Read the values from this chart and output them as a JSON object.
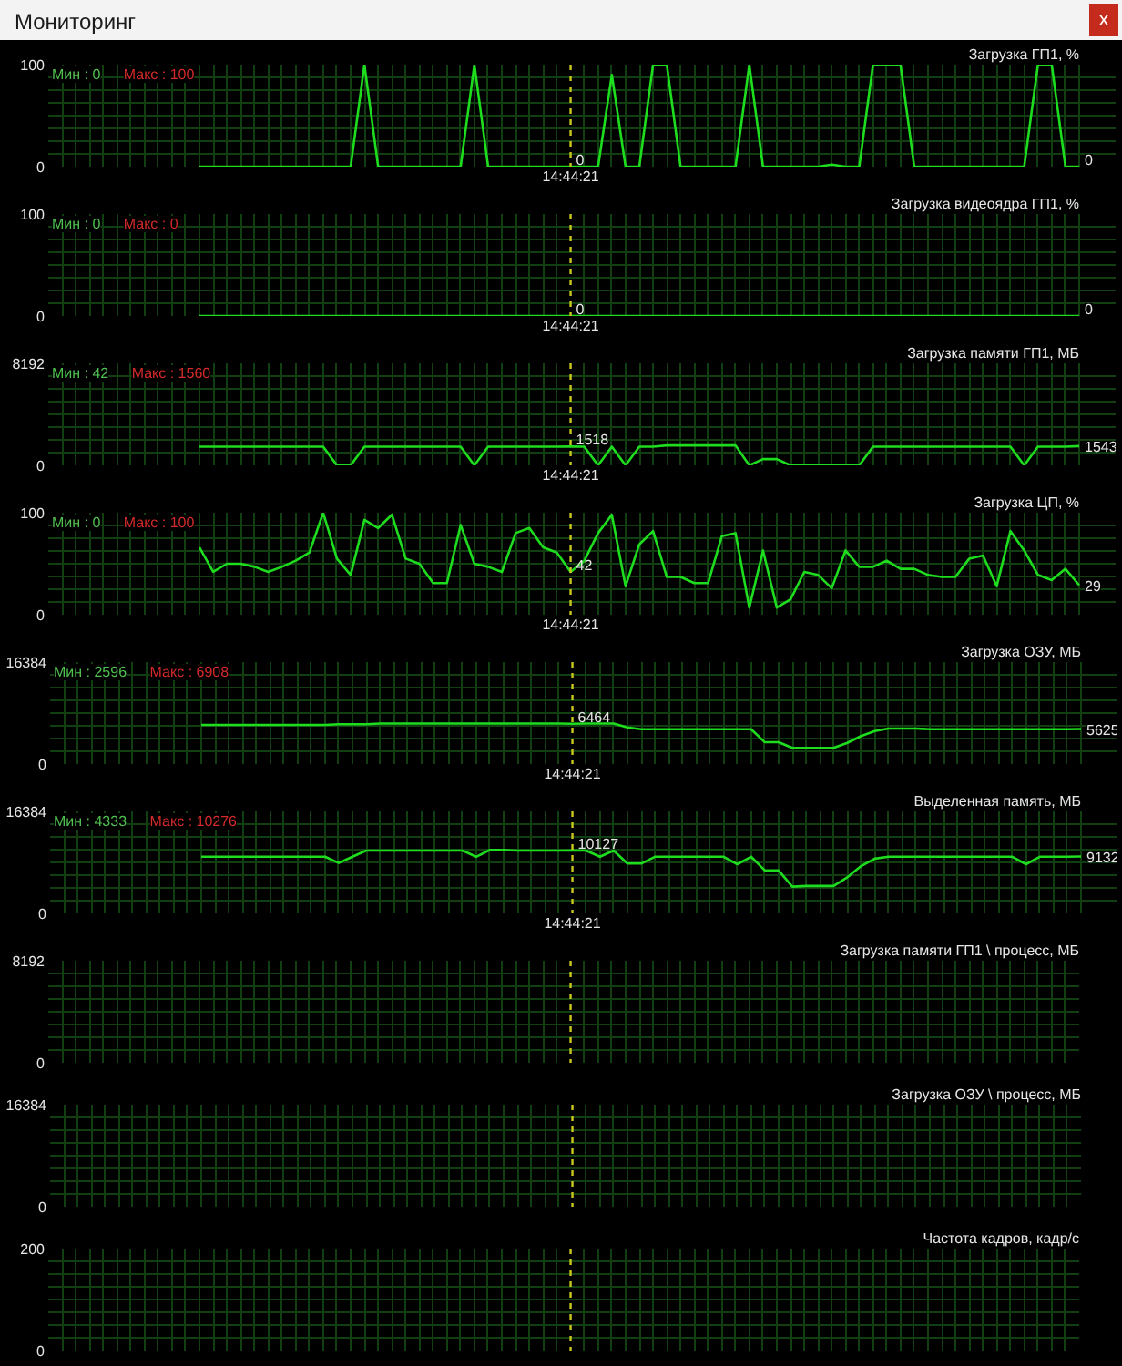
{
  "chart_data": [
    {
      "type": "line",
      "title": "Загрузка ГП1, %",
      "annotations": [
        "Мин : 0",
        "Макс : 100",
        "Мониторинг",
        "x"
      ],
      "categories": [
        null,
        null,
        null,
        null,
        null,
        null,
        null,
        null,
        null,
        null,
        null,
        null,
        null,
        null,
        null,
        null,
        null,
        null,
        null,
        null,
        null,
        null,
        null,
        null,
        null,
        null,
        null,
        null,
        null,
        null,
        null,
        null,
        null,
        null,
        null,
        null,
        null,
        null,
        "14:44:21",
        null,
        null,
        null,
        null,
        null,
        null,
        null,
        null,
        null,
        null,
        null,
        null,
        null,
        null,
        null,
        null,
        null,
        null,
        null,
        null,
        null,
        null,
        null,
        null,
        null,
        null,
        null,
        null,
        null,
        null,
        null,
        null,
        null,
        null,
        null,
        null,
        null
      ],
      "values": [
        null,
        null,
        null,
        null,
        null,
        null,
        null,
        null,
        null,
        null,
        null,
        0,
        0,
        0,
        0,
        0,
        0,
        0,
        0,
        0,
        0,
        0,
        0,
        100,
        0,
        0,
        0,
        0,
        0,
        0,
        0,
        100,
        0,
        0,
        0,
        0,
        0,
        0,
        0,
        0,
        0,
        90,
        0,
        0,
        100,
        100,
        0,
        0,
        0,
        0,
        0,
        100,
        0,
        0,
        0,
        0,
        0,
        2,
        0,
        0,
        100,
        100,
        100,
        0,
        0,
        0,
        0,
        0,
        0,
        0,
        0,
        0,
        100,
        100,
        0,
        0
      ],
      "color": "#1edc1e",
      "value_labels": [
        null,
        null,
        null,
        null,
        null,
        null,
        null,
        null,
        null,
        null,
        null,
        null,
        null,
        null,
        null,
        null,
        null,
        null,
        null,
        null,
        null,
        null,
        null,
        null,
        null,
        null,
        null,
        null,
        null,
        null,
        null,
        null,
        null,
        null,
        null,
        null,
        null,
        null,
        "0",
        null,
        null,
        null,
        null,
        null,
        null,
        null,
        null,
        null,
        null,
        null,
        null,
        null,
        null,
        null,
        null,
        null,
        null,
        null,
        null,
        null,
        null,
        null,
        null,
        null,
        null,
        null,
        null,
        null,
        null,
        null,
        null,
        null,
        null,
        null,
        null,
        "0"
      ],
      "ylim": [
        0,
        100
      ],
      "yticks": [
        0,
        {
          "value": 12.5,
          "label": null
        },
        {
          "value": 25,
          "label": null
        },
        {
          "value": 37.5,
          "label": null
        },
        {
          "value": 50,
          "label": null
        },
        {
          "value": 62.5,
          "label": null
        },
        {
          "value": 75,
          "label": null
        },
        {
          "value": 87.5,
          "label": null
        },
        100
      ],
      "grid": true,
      "ref_lines": [
        {
          "axis": "x",
          "value": "14:44:21",
          "color": "#c8c81e",
          "line_style": "dashed"
        }
      ]
    },
    {
      "type": "line",
      "title": "Загрузка видеоядра ГП1, %",
      "annotations": [
        "Мин : 0",
        "Макс : 0"
      ],
      "categories": [
        null,
        null,
        null,
        null,
        null,
        null,
        null,
        null,
        null,
        null,
        null,
        null,
        null,
        null,
        null,
        null,
        null,
        null,
        null,
        null,
        null,
        null,
        null,
        null,
        null,
        null,
        null,
        null,
        null,
        null,
        null,
        null,
        null,
        null,
        null,
        null,
        null,
        null,
        "14:44:21",
        null,
        null,
        null,
        null,
        null,
        null,
        null,
        null,
        null,
        null,
        null,
        null,
        null,
        null,
        null,
        null,
        null,
        null,
        null,
        null,
        null,
        null,
        null,
        null,
        null,
        null,
        null,
        null,
        null,
        null,
        null,
        null,
        null,
        null,
        null,
        null,
        null
      ],
      "values": [
        null,
        null,
        null,
        null,
        null,
        null,
        null,
        null,
        null,
        null,
        null,
        0,
        0,
        0,
        0,
        0,
        0,
        0,
        0,
        0,
        0,
        0,
        0,
        0,
        0,
        0,
        0,
        0,
        0,
        0,
        0,
        0,
        0,
        0,
        0,
        0,
        0,
        0,
        0,
        0,
        0,
        0,
        0,
        0,
        0,
        0,
        0,
        0,
        0,
        0,
        0,
        0,
        0,
        0,
        0,
        0,
        0,
        0,
        0,
        0,
        0,
        0,
        0,
        0,
        0,
        0,
        0,
        0,
        0,
        0,
        0,
        0,
        0,
        0,
        0,
        0
      ],
      "color": "#1edc1e",
      "value_labels": [
        null,
        null,
        null,
        null,
        null,
        null,
        null,
        null,
        null,
        null,
        null,
        null,
        null,
        null,
        null,
        null,
        null,
        null,
        null,
        null,
        null,
        null,
        null,
        null,
        null,
        null,
        null,
        null,
        null,
        null,
        null,
        null,
        null,
        null,
        null,
        null,
        null,
        null,
        "0",
        null,
        null,
        null,
        null,
        null,
        null,
        null,
        null,
        null,
        null,
        null,
        null,
        null,
        null,
        null,
        null,
        null,
        null,
        null,
        null,
        null,
        null,
        null,
        null,
        null,
        null,
        null,
        null,
        null,
        null,
        null,
        null,
        null,
        null,
        null,
        null,
        "0"
      ],
      "ylim": [
        0,
        100
      ],
      "yticks": [
        0,
        {
          "value": 12.5,
          "label": null
        },
        {
          "value": 25,
          "label": null
        },
        {
          "value": 37.5,
          "label": null
        },
        {
          "value": 50,
          "label": null
        },
        {
          "value": 62.5,
          "label": null
        },
        {
          "value": 75,
          "label": null
        },
        {
          "value": 87.5,
          "label": null
        },
        100
      ],
      "grid": true,
      "ref_lines": [
        {
          "axis": "x",
          "value": "14:44:21",
          "color": "#c8c81e",
          "line_style": "dashed"
        }
      ]
    },
    {
      "type": "line",
      "title": "Загрузка памяти ГП1, МБ",
      "annotations": [
        "Мин : 42",
        "Макс : 1560"
      ],
      "categories": [
        null,
        null,
        null,
        null,
        null,
        null,
        null,
        null,
        null,
        null,
        null,
        null,
        null,
        null,
        null,
        null,
        null,
        null,
        null,
        null,
        null,
        null,
        null,
        null,
        null,
        null,
        null,
        null,
        null,
        null,
        null,
        null,
        null,
        null,
        null,
        null,
        null,
        null,
        "14:44:21",
        null,
        null,
        null,
        null,
        null,
        null,
        null,
        null,
        null,
        null,
        null,
        null,
        null,
        null,
        null,
        null,
        null,
        null,
        null,
        null,
        null,
        null,
        null,
        null,
        null,
        null,
        null,
        null,
        null,
        null,
        null,
        null,
        null,
        null,
        null,
        null,
        null
      ],
      "values": [
        null,
        null,
        null,
        null,
        null,
        null,
        null,
        null,
        null,
        null,
        null,
        1500,
        1500,
        1500,
        1500,
        1500,
        1500,
        1500,
        1500,
        1500,
        1500,
        0,
        0,
        1500,
        1500,
        1500,
        1500,
        1500,
        1500,
        1500,
        1500,
        0,
        1500,
        1500,
        1500,
        1500,
        1500,
        1500,
        1518,
        1500,
        0,
        1500,
        0,
        1500,
        1500,
        1600,
        1600,
        1600,
        1600,
        1600,
        1600,
        0,
        500,
        500,
        0,
        0,
        0,
        0,
        0,
        0,
        1500,
        1500,
        1500,
        1500,
        1500,
        1500,
        1500,
        1500,
        1500,
        1500,
        1500,
        0,
        1500,
        1500,
        1500,
        1543
      ],
      "color": "#1edc1e",
      "value_labels": [
        null,
        null,
        null,
        null,
        null,
        null,
        null,
        null,
        null,
        null,
        null,
        null,
        null,
        null,
        null,
        null,
        null,
        null,
        null,
        null,
        null,
        null,
        null,
        null,
        null,
        null,
        null,
        null,
        null,
        null,
        null,
        null,
        null,
        null,
        null,
        null,
        null,
        null,
        "1518",
        null,
        null,
        null,
        null,
        null,
        null,
        null,
        null,
        null,
        null,
        null,
        null,
        null,
        null,
        null,
        null,
        null,
        null,
        null,
        null,
        null,
        null,
        null,
        null,
        null,
        null,
        null,
        null,
        null,
        null,
        null,
        null,
        null,
        null,
        null,
        null,
        "1543"
      ],
      "ylim": [
        0,
        8192
      ],
      "yticks": [
        0,
        {
          "value": 1024,
          "label": null
        },
        {
          "value": 2048,
          "label": null
        },
        {
          "value": 3072,
          "label": null
        },
        {
          "value": 4096,
          "label": null
        },
        {
          "value": 5120,
          "label": null
        },
        {
          "value": 6144,
          "label": null
        },
        {
          "value": 7168,
          "label": null
        },
        8192
      ],
      "grid": true,
      "ref_lines": [
        {
          "axis": "x",
          "value": "14:44:21",
          "color": "#c8c81e",
          "line_style": "dashed"
        }
      ]
    },
    {
      "type": "line",
      "title": "Загрузка ЦП, %",
      "annotations": [
        "Мин : 0",
        "Макс : 100"
      ],
      "categories": [
        null,
        null,
        null,
        null,
        null,
        null,
        null,
        null,
        null,
        null,
        null,
        null,
        null,
        null,
        null,
        null,
        null,
        null,
        null,
        null,
        null,
        null,
        null,
        null,
        null,
        null,
        null,
        null,
        null,
        null,
        null,
        null,
        null,
        null,
        null,
        null,
        null,
        null,
        "14:44:21",
        null,
        null,
        null,
        null,
        null,
        null,
        null,
        null,
        null,
        null,
        null,
        null,
        null,
        null,
        null,
        null,
        null,
        null,
        null,
        null,
        null,
        null,
        null,
        null,
        null,
        null,
        null,
        null,
        null,
        null,
        null,
        null,
        null,
        null,
        null,
        null,
        null
      ],
      "values": [
        null,
        null,
        null,
        null,
        null,
        null,
        null,
        null,
        null,
        null,
        null,
        66,
        42,
        50,
        50,
        47,
        42,
        47,
        53,
        61,
        100,
        55,
        39,
        93,
        85,
        98,
        55,
        50,
        31,
        31,
        88,
        50,
        47,
        42,
        80,
        85,
        66,
        61,
        42,
        53,
        80,
        98,
        28,
        69,
        82,
        37,
        37,
        31,
        31,
        77,
        80,
        7,
        63,
        7,
        15,
        42,
        39,
        26,
        63,
        47,
        47,
        53,
        45,
        45,
        39,
        37,
        37,
        55,
        58,
        28,
        82,
        63,
        39,
        34,
        45,
        29
      ],
      "color": "#1edc1e",
      "value_labels": [
        null,
        null,
        null,
        null,
        null,
        null,
        null,
        null,
        null,
        null,
        null,
        null,
        null,
        null,
        null,
        null,
        null,
        null,
        null,
        null,
        null,
        null,
        null,
        null,
        null,
        null,
        null,
        null,
        null,
        null,
        null,
        null,
        null,
        null,
        null,
        null,
        null,
        null,
        "42",
        null,
        null,
        null,
        null,
        null,
        null,
        null,
        null,
        null,
        null,
        null,
        null,
        null,
        null,
        null,
        null,
        null,
        null,
        null,
        null,
        null,
        null,
        null,
        null,
        null,
        null,
        null,
        null,
        null,
        null,
        null,
        null,
        null,
        null,
        null,
        null,
        "29"
      ],
      "ylim": [
        0,
        100
      ],
      "yticks": [
        0,
        {
          "value": 12.5,
          "label": null
        },
        {
          "value": 25,
          "label": null
        },
        {
          "value": 37.5,
          "label": null
        },
        {
          "value": 50,
          "label": null
        },
        {
          "value": 62.5,
          "label": null
        },
        {
          "value": 75,
          "label": null
        },
        {
          "value": 87.5,
          "label": null
        },
        100
      ],
      "grid": true,
      "ref_lines": [
        {
          "axis": "x",
          "value": "14:44:21",
          "color": "#c8c81e",
          "line_style": "dashed"
        }
      ]
    },
    {
      "type": "line",
      "title": "Загрузка ОЗУ, МБ",
      "annotations": [
        "Мин : 2596",
        "Макс : 6908"
      ],
      "categories": [
        null,
        null,
        null,
        null,
        null,
        null,
        null,
        null,
        null,
        null,
        null,
        null,
        null,
        null,
        null,
        null,
        null,
        null,
        null,
        null,
        null,
        null,
        null,
        null,
        null,
        null,
        null,
        null,
        null,
        null,
        null,
        null,
        null,
        null,
        null,
        null,
        null,
        null,
        "14:44:21",
        null,
        null,
        null,
        null,
        null,
        null,
        null,
        null,
        null,
        null,
        null,
        null,
        null,
        null,
        null,
        null,
        null,
        null,
        null,
        null,
        null,
        null,
        null,
        null,
        null,
        null,
        null,
        null,
        null,
        null,
        null,
        null,
        null,
        null,
        null,
        null,
        null
      ],
      "values": [
        null,
        null,
        null,
        null,
        null,
        null,
        null,
        null,
        null,
        null,
        null,
        6300,
        6300,
        6300,
        6300,
        6300,
        6300,
        6300,
        6300,
        6300,
        6300,
        6400,
        6400,
        6400,
        6500,
        6500,
        6500,
        6500,
        6500,
        6500,
        6500,
        6500,
        6500,
        6500,
        6500,
        6500,
        6500,
        6500,
        6464,
        6500,
        6500,
        6500,
        5900,
        5600,
        5600,
        5600,
        5600,
        5600,
        5600,
        5600,
        5600,
        5600,
        3500,
        3500,
        2600,
        2600,
        2600,
        2600,
        3400,
        4500,
        5300,
        5700,
        5700,
        5700,
        5600,
        5600,
        5600,
        5600,
        5600,
        5600,
        5600,
        5600,
        5600,
        5600,
        5600,
        5625
      ],
      "color": "#1edc1e",
      "value_labels": [
        null,
        null,
        null,
        null,
        null,
        null,
        null,
        null,
        null,
        null,
        null,
        null,
        null,
        null,
        null,
        null,
        null,
        null,
        null,
        null,
        null,
        null,
        null,
        null,
        null,
        null,
        null,
        null,
        null,
        null,
        null,
        null,
        null,
        null,
        null,
        null,
        null,
        null,
        "6464",
        null,
        null,
        null,
        null,
        null,
        null,
        null,
        null,
        null,
        null,
        null,
        null,
        null,
        null,
        null,
        null,
        null,
        null,
        null,
        null,
        null,
        null,
        null,
        null,
        null,
        null,
        null,
        null,
        null,
        null,
        null,
        null,
        null,
        null,
        null,
        null,
        "5625"
      ],
      "ylim": [
        0,
        16384
      ],
      "yticks": [
        0,
        {
          "value": 2048,
          "label": null
        },
        {
          "value": 4096,
          "label": null
        },
        {
          "value": 6144,
          "label": null
        },
        {
          "value": 8192,
          "label": null
        },
        {
          "value": 10240,
          "label": null
        },
        {
          "value": 12288,
          "label": null
        },
        {
          "value": 14336,
          "label": null
        },
        16384
      ],
      "grid": true,
      "ref_lines": [
        {
          "axis": "x",
          "value": "14:44:21",
          "color": "#c8c81e",
          "line_style": "dashed"
        }
      ]
    },
    {
      "type": "line",
      "title": "Выделенная память, МБ",
      "annotations": [
        "Мин : 4333",
        "Макс : 10276"
      ],
      "categories": [
        null,
        null,
        null,
        null,
        null,
        null,
        null,
        null,
        null,
        null,
        null,
        null,
        null,
        null,
        null,
        null,
        null,
        null,
        null,
        null,
        null,
        null,
        null,
        null,
        null,
        null,
        null,
        null,
        null,
        null,
        null,
        null,
        null,
        null,
        null,
        null,
        null,
        null,
        "14:44:21",
        null,
        null,
        null,
        null,
        null,
        null,
        null,
        null,
        null,
        null,
        null,
        null,
        null,
        null,
        null,
        null,
        null,
        null,
        null,
        null,
        null,
        null,
        null,
        null,
        null,
        null,
        null,
        null,
        null,
        null,
        null,
        null,
        null,
        null,
        null,
        null,
        null
      ],
      "values": [
        null,
        null,
        null,
        null,
        null,
        null,
        null,
        null,
        null,
        null,
        null,
        9100,
        9100,
        9100,
        9100,
        9100,
        9100,
        9100,
        9100,
        9100,
        9100,
        8100,
        9100,
        10100,
        10100,
        10100,
        10100,
        10100,
        10100,
        10100,
        10100,
        9100,
        10200,
        10200,
        10100,
        10100,
        10100,
        10100,
        10127,
        10100,
        9100,
        10100,
        8000,
        8000,
        9100,
        9100,
        9100,
        9100,
        9100,
        9100,
        7900,
        9100,
        6900,
        6900,
        4300,
        4400,
        4400,
        4400,
        5800,
        7600,
        8800,
        9100,
        9100,
        9100,
        9100,
        9100,
        9100,
        9100,
        9100,
        9100,
        9100,
        7900,
        9100,
        9100,
        9100,
        9132
      ],
      "color": "#1edc1e",
      "value_labels": [
        null,
        null,
        null,
        null,
        null,
        null,
        null,
        null,
        null,
        null,
        null,
        null,
        null,
        null,
        null,
        null,
        null,
        null,
        null,
        null,
        null,
        null,
        null,
        null,
        null,
        null,
        null,
        null,
        null,
        null,
        null,
        null,
        null,
        null,
        null,
        null,
        null,
        null,
        "10127",
        null,
        null,
        null,
        null,
        null,
        null,
        null,
        null,
        null,
        null,
        null,
        null,
        null,
        null,
        null,
        null,
        null,
        null,
        null,
        null,
        null,
        null,
        null,
        null,
        null,
        null,
        null,
        null,
        null,
        null,
        null,
        null,
        null,
        null,
        null,
        null,
        "9132"
      ],
      "ylim": [
        0,
        16384
      ],
      "yticks": [
        0,
        {
          "value": 2048,
          "label": null
        },
        {
          "value": 4096,
          "label": null
        },
        {
          "value": 6144,
          "label": null
        },
        {
          "value": 8192,
          "label": null
        },
        {
          "value": 10240,
          "label": null
        },
        {
          "value": 12288,
          "label": null
        },
        {
          "value": 14336,
          "label": null
        },
        16384
      ],
      "grid": true,
      "ref_lines": [
        {
          "axis": "x",
          "value": "14:44:21",
          "color": "#c8c81e",
          "line_style": "dashed"
        }
      ]
    },
    {
      "type": "line",
      "title": "Загрузка памяти ГП1 \\ процесс, МБ",
      "tick_labels": "y",
      "categories": [
        null,
        null,
        null,
        null,
        null,
        null,
        null,
        null,
        null,
        null,
        null,
        null,
        null,
        null,
        null,
        null,
        null,
        null,
        null,
        null,
        null,
        null,
        null,
        null,
        null,
        null,
        null,
        null,
        null,
        null,
        null,
        null,
        null,
        null,
        null,
        null,
        null,
        null,
        null,
        null,
        null,
        null,
        null,
        null,
        null,
        null,
        null,
        null,
        null,
        null,
        null,
        null,
        null,
        null,
        null,
        null,
        null,
        null,
        null,
        null,
        null,
        null,
        null,
        null,
        null,
        null,
        null,
        null,
        null,
        null,
        null,
        null,
        null,
        null,
        null,
        null
      ],
      "ylim": [
        0,
        8192
      ],
      "yticks": [
        0,
        {
          "value": 1024,
          "label": null
        },
        {
          "value": 2048,
          "label": null
        },
        {
          "value": 3072,
          "label": null
        },
        {
          "value": 4096,
          "label": null
        },
        {
          "value": 5120,
          "label": null
        },
        {
          "value": 6144,
          "label": null
        },
        {
          "value": 7168,
          "label": null
        },
        8192
      ],
      "grid": true
    },
    {
      "type": "line",
      "title": "Загрузка ОЗУ \\ процесс, МБ",
      "tick_labels": "y",
      "categories": [
        null,
        null,
        null,
        null,
        null,
        null,
        null,
        null,
        null,
        null,
        null,
        null,
        null,
        null,
        null,
        null,
        null,
        null,
        null,
        null,
        null,
        null,
        null,
        null,
        null,
        null,
        null,
        null,
        null,
        null,
        null,
        null,
        null,
        null,
        null,
        null,
        null,
        null,
        null,
        null,
        null,
        null,
        null,
        null,
        null,
        null,
        null,
        null,
        null,
        null,
        null,
        null,
        null,
        null,
        null,
        null,
        null,
        null,
        null,
        null,
        null,
        null,
        null,
        null,
        null,
        null,
        null,
        null,
        null,
        null,
        null,
        null,
        null,
        null,
        null,
        null
      ],
      "ylim": [
        0,
        16384
      ],
      "yticks": [
        0,
        {
          "value": 2048,
          "label": null
        },
        {
          "value": 4096,
          "label": null
        },
        {
          "value": 6144,
          "label": null
        },
        {
          "value": 8192,
          "label": null
        },
        {
          "value": 10240,
          "label": null
        },
        {
          "value": 12288,
          "label": null
        },
        {
          "value": 14336,
          "label": null
        },
        16384
      ],
      "grid": true
    },
    {
      "type": "line",
      "title": "Частота кадров, кадр/с",
      "tick_labels": "y",
      "categories": [
        null,
        null,
        null,
        null,
        null,
        null,
        null,
        null,
        null,
        null,
        null,
        null,
        null,
        null,
        null,
        null,
        null,
        null,
        null,
        null,
        null,
        null,
        null,
        null,
        null,
        null,
        null,
        null,
        null,
        null,
        null,
        null,
        null,
        null,
        null,
        null,
        null,
        null,
        null,
        null,
        null,
        null,
        null,
        null,
        null,
        null,
        null,
        null,
        null,
        null,
        null,
        null,
        null,
        null,
        null,
        null,
        null,
        null,
        null,
        null,
        null,
        null,
        null,
        null,
        null,
        null,
        null,
        null,
        null,
        null,
        null,
        null,
        null,
        null,
        null,
        null
      ],
      "ylim": [
        0,
        200
      ],
      "yticks": [
        0,
        {
          "value": 25,
          "label": null
        },
        {
          "value": 50,
          "label": null
        },
        {
          "value": 75,
          "label": null
        },
        {
          "value": 100,
          "label": null
        },
        {
          "value": 125,
          "label": null
        },
        {
          "value": 150,
          "label": null
        },
        {
          "value": 175,
          "label": null
        },
        200
      ],
      "grid": true
    }
  ]
}
